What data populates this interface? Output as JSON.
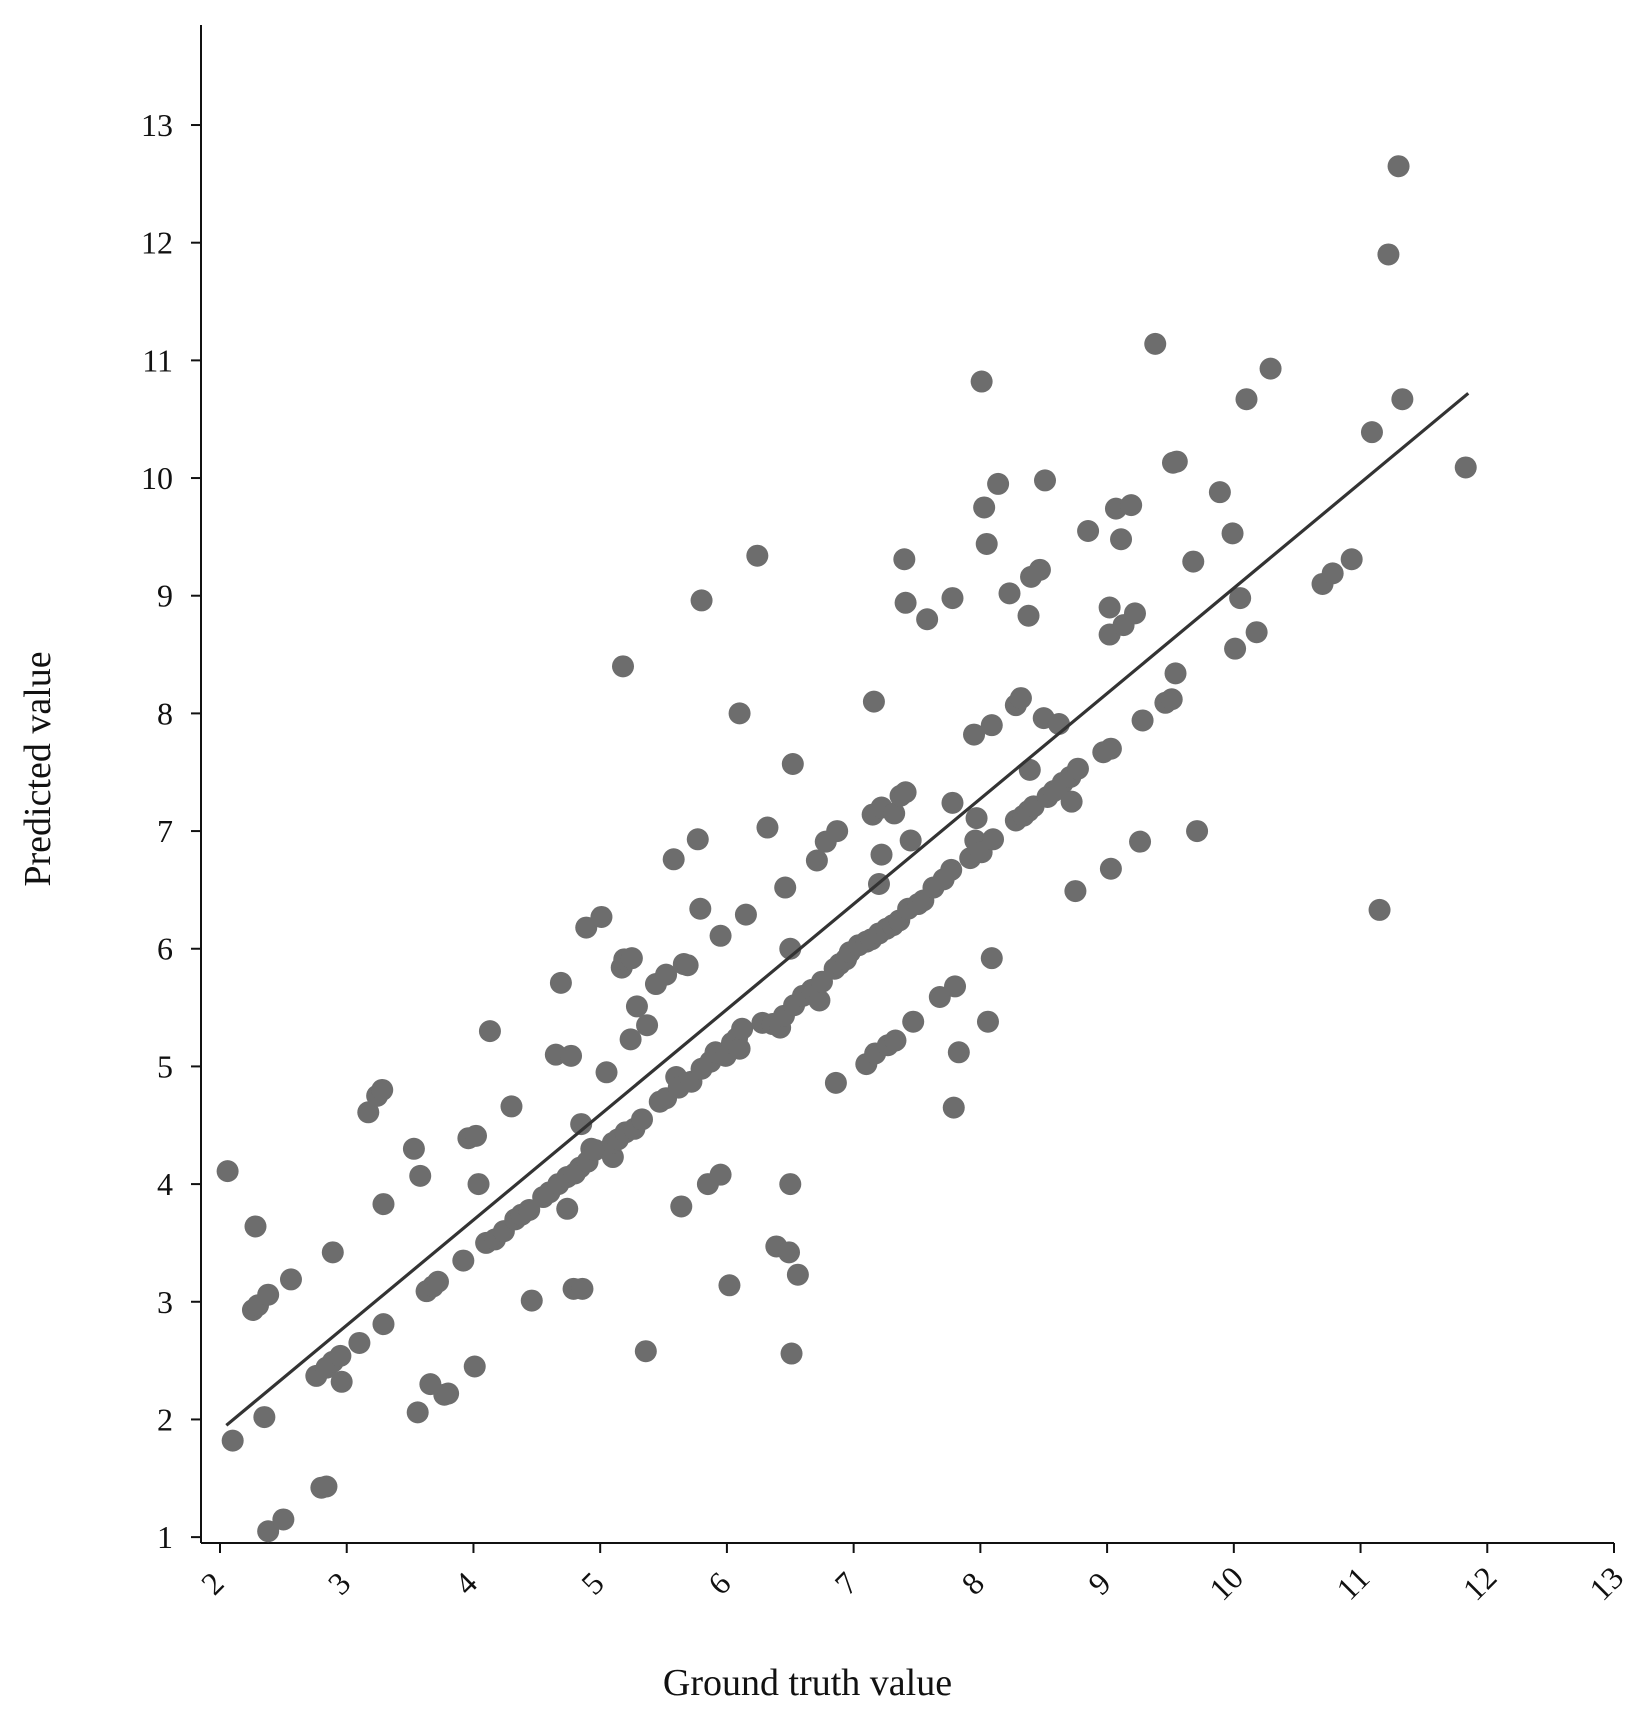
{
  "chart_data": {
    "type": "scatter",
    "title": "",
    "xlabel": "Ground truth value",
    "ylabel": "Predicted value",
    "xlim": [
      1.85,
      13
    ],
    "ylim": [
      0.95,
      13.85
    ],
    "xticks": [
      "2",
      "3",
      "4",
      "5",
      "6",
      "7",
      "8",
      "9",
      "10",
      "11",
      "12",
      "13"
    ],
    "yticks": [
      "1",
      "2",
      "3",
      "4",
      "5",
      "6",
      "7",
      "8",
      "9",
      "10",
      "11",
      "12",
      "13"
    ],
    "grid": false,
    "legend": "none",
    "point_color": "#6d6d6d",
    "line_color": "#333333",
    "trendline": {
      "x": [
        2.05,
        11.85
      ],
      "y": [
        1.95,
        10.72
      ]
    },
    "series": [
      {
        "points": [
          [
            2.06,
            4.11
          ],
          [
            2.1,
            1.82
          ],
          [
            2.28,
            3.64
          ],
          [
            2.26,
            2.93
          ],
          [
            2.3,
            2.97
          ],
          [
            2.35,
            2.02
          ],
          [
            2.38,
            3.06
          ],
          [
            2.38,
            1.05
          ],
          [
            2.5,
            1.15
          ],
          [
            2.56,
            3.19
          ],
          [
            2.76,
            2.37
          ],
          [
            2.8,
            1.42
          ],
          [
            2.84,
            1.43
          ],
          [
            2.84,
            2.44
          ],
          [
            2.89,
            2.49
          ],
          [
            2.89,
            3.42
          ],
          [
            2.95,
            2.54
          ],
          [
            2.96,
            2.32
          ],
          [
            3.1,
            2.65
          ],
          [
            3.17,
            4.61
          ],
          [
            3.24,
            4.75
          ],
          [
            3.28,
            4.8
          ],
          [
            3.29,
            2.81
          ],
          [
            3.29,
            3.83
          ],
          [
            3.53,
            4.3
          ],
          [
            3.56,
            2.06
          ],
          [
            3.58,
            4.07
          ],
          [
            3.63,
            3.09
          ],
          [
            3.66,
            2.3
          ],
          [
            3.68,
            3.13
          ],
          [
            3.72,
            3.17
          ],
          [
            3.77,
            2.21
          ],
          [
            3.8,
            2.22
          ],
          [
            3.92,
            3.35
          ],
          [
            3.96,
            4.39
          ],
          [
            4.02,
            4.41
          ],
          [
            4.01,
            2.45
          ],
          [
            4.04,
            4.0
          ],
          [
            4.1,
            3.5
          ],
          [
            4.13,
            5.3
          ],
          [
            4.17,
            3.53
          ],
          [
            4.24,
            3.6
          ],
          [
            4.3,
            4.66
          ],
          [
            4.33,
            3.7
          ],
          [
            4.38,
            3.74
          ],
          [
            4.44,
            3.78
          ],
          [
            4.46,
            3.01
          ],
          [
            4.55,
            3.89
          ],
          [
            4.6,
            3.93
          ],
          [
            4.65,
            5.1
          ],
          [
            4.67,
            4.0
          ],
          [
            4.69,
            5.71
          ],
          [
            4.74,
            3.79
          ],
          [
            4.74,
            4.06
          ],
          [
            4.77,
            5.09
          ],
          [
            4.79,
            3.11
          ],
          [
            4.8,
            4.09
          ],
          [
            4.84,
            4.14
          ],
          [
            4.85,
            4.51
          ],
          [
            4.86,
            3.11
          ],
          [
            4.9,
            4.19
          ],
          [
            4.89,
            6.18
          ],
          [
            4.93,
            4.3
          ],
          [
            4.96,
            4.29
          ],
          [
            5.01,
            6.27
          ],
          [
            5.05,
            4.95
          ],
          [
            5.1,
            4.23
          ],
          [
            5.1,
            4.35
          ],
          [
            5.14,
            4.38
          ],
          [
            5.17,
            5.84
          ],
          [
            5.18,
            8.4
          ],
          [
            5.19,
            5.91
          ],
          [
            5.2,
            4.44
          ],
          [
            5.24,
            5.23
          ],
          [
            5.25,
            5.92
          ],
          [
            5.27,
            4.47
          ],
          [
            5.29,
            5.51
          ],
          [
            5.33,
            4.55
          ],
          [
            5.36,
            2.58
          ],
          [
            5.37,
            5.35
          ],
          [
            5.44,
            5.7
          ],
          [
            5.47,
            4.7
          ],
          [
            5.52,
            4.73
          ],
          [
            5.52,
            5.78
          ],
          [
            5.58,
            6.76
          ],
          [
            5.6,
            4.91
          ],
          [
            5.62,
            4.82
          ],
          [
            5.64,
            3.81
          ],
          [
            5.66,
            5.87
          ],
          [
            5.69,
            5.86
          ],
          [
            5.72,
            4.87
          ],
          [
            5.77,
            6.93
          ],
          [
            5.79,
            6.34
          ],
          [
            5.8,
            8.96
          ],
          [
            5.8,
            4.98
          ],
          [
            5.85,
            4.0
          ],
          [
            5.87,
            5.04
          ],
          [
            5.91,
            5.12
          ],
          [
            5.95,
            4.08
          ],
          [
            5.95,
            6.11
          ],
          [
            5.99,
            5.09
          ],
          [
            6.02,
            3.14
          ],
          [
            6.04,
            5.2
          ],
          [
            6.08,
            5.24
          ],
          [
            6.1,
            5.15
          ],
          [
            6.1,
            8.0
          ],
          [
            6.12,
            5.32
          ],
          [
            6.15,
            6.29
          ],
          [
            6.24,
            9.34
          ],
          [
            6.28,
            5.37
          ],
          [
            6.32,
            7.03
          ],
          [
            6.36,
            5.36
          ],
          [
            6.39,
            3.47
          ],
          [
            6.42,
            5.33
          ],
          [
            6.45,
            5.43
          ],
          [
            6.46,
            6.52
          ],
          [
            6.49,
            3.42
          ],
          [
            6.5,
            4.0
          ],
          [
            6.5,
            6.0
          ],
          [
            6.51,
            2.56
          ],
          [
            6.52,
            7.57
          ],
          [
            6.53,
            5.52
          ],
          [
            6.56,
            3.23
          ],
          [
            6.6,
            5.6
          ],
          [
            6.67,
            5.65
          ],
          [
            6.71,
            6.75
          ],
          [
            6.73,
            5.56
          ],
          [
            6.75,
            5.72
          ],
          [
            6.78,
            6.91
          ],
          [
            6.85,
            5.83
          ],
          [
            6.86,
            4.86
          ],
          [
            6.87,
            7.0
          ],
          [
            6.89,
            5.87
          ],
          [
            6.94,
            5.91
          ],
          [
            6.97,
            5.97
          ],
          [
            7.04,
            6.03
          ],
          [
            7.1,
            6.06
          ],
          [
            7.1,
            5.02
          ],
          [
            7.14,
            6.08
          ],
          [
            7.15,
            7.14
          ],
          [
            7.16,
            8.1
          ],
          [
            7.17,
            5.11
          ],
          [
            7.2,
            6.13
          ],
          [
            7.2,
            6.55
          ],
          [
            7.22,
            7.2
          ],
          [
            7.22,
            6.8
          ],
          [
            7.26,
            6.17
          ],
          [
            7.27,
            5.18
          ],
          [
            7.31,
            6.2
          ],
          [
            7.32,
            7.15
          ],
          [
            7.33,
            5.22
          ],
          [
            7.36,
            6.24
          ],
          [
            7.37,
            7.3
          ],
          [
            7.4,
            9.31
          ],
          [
            7.41,
            8.94
          ],
          [
            7.41,
            7.33
          ],
          [
            7.43,
            6.34
          ],
          [
            7.45,
            6.92
          ],
          [
            7.47,
            5.38
          ],
          [
            7.51,
            6.38
          ],
          [
            7.55,
            6.41
          ],
          [
            7.58,
            8.8
          ],
          [
            7.63,
            6.52
          ],
          [
            7.68,
            5.59
          ],
          [
            7.71,
            6.59
          ],
          [
            7.77,
            6.67
          ],
          [
            7.78,
            8.98
          ],
          [
            7.78,
            7.24
          ],
          [
            7.79,
            4.65
          ],
          [
            7.8,
            5.68
          ],
          [
            7.83,
            5.12
          ],
          [
            7.92,
            6.77
          ],
          [
            7.95,
            7.82
          ],
          [
            7.96,
            6.92
          ],
          [
            7.97,
            7.11
          ],
          [
            8.01,
            6.82
          ],
          [
            8.01,
            10.82
          ],
          [
            8.03,
            9.75
          ],
          [
            8.05,
            9.44
          ],
          [
            8.06,
            5.38
          ],
          [
            8.09,
            7.9
          ],
          [
            8.09,
            5.92
          ],
          [
            8.1,
            6.93
          ],
          [
            8.14,
            9.95
          ],
          [
            8.23,
            9.02
          ],
          [
            8.28,
            7.09
          ],
          [
            8.28,
            8.07
          ],
          [
            8.32,
            8.13
          ],
          [
            8.34,
            7.13
          ],
          [
            8.38,
            7.17
          ],
          [
            8.38,
            8.83
          ],
          [
            8.39,
            7.52
          ],
          [
            8.4,
            9.16
          ],
          [
            8.42,
            7.21
          ],
          [
            8.47,
            9.22
          ],
          [
            8.5,
            7.96
          ],
          [
            8.51,
            9.98
          ],
          [
            8.53,
            7.29
          ],
          [
            8.58,
            7.34
          ],
          [
            8.62,
            7.91
          ],
          [
            8.65,
            7.41
          ],
          [
            8.71,
            7.46
          ],
          [
            8.72,
            7.25
          ],
          [
            8.75,
            6.49
          ],
          [
            8.77,
            7.53
          ],
          [
            8.85,
            9.55
          ],
          [
            8.97,
            7.67
          ],
          [
            9.02,
            8.9
          ],
          [
            9.02,
            8.67
          ],
          [
            9.03,
            7.7
          ],
          [
            9.03,
            6.68
          ],
          [
            9.07,
            9.74
          ],
          [
            9.11,
            9.48
          ],
          [
            9.13,
            8.75
          ],
          [
            9.19,
            9.77
          ],
          [
            9.22,
            8.85
          ],
          [
            9.26,
            6.91
          ],
          [
            9.28,
            7.94
          ],
          [
            9.38,
            11.14
          ],
          [
            9.46,
            8.09
          ],
          [
            9.51,
            8.12
          ],
          [
            9.52,
            10.13
          ],
          [
            9.54,
            8.34
          ],
          [
            9.55,
            10.14
          ],
          [
            9.68,
            9.29
          ],
          [
            9.71,
            7.0
          ],
          [
            9.89,
            9.88
          ],
          [
            9.99,
            9.53
          ],
          [
            10.01,
            8.55
          ],
          [
            10.05,
            8.98
          ],
          [
            10.1,
            10.67
          ],
          [
            10.18,
            8.69
          ],
          [
            10.29,
            10.93
          ],
          [
            10.7,
            9.1
          ],
          [
            10.78,
            9.19
          ],
          [
            10.93,
            9.31
          ],
          [
            11.09,
            10.39
          ],
          [
            11.15,
            6.33
          ],
          [
            11.22,
            11.9
          ],
          [
            11.3,
            12.65
          ],
          [
            11.33,
            10.67
          ],
          [
            11.83,
            10.09
          ]
        ]
      }
    ]
  }
}
